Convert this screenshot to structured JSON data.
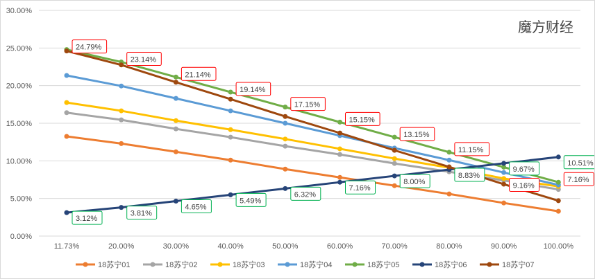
{
  "chart_data": {
    "type": "line",
    "title": "",
    "xlabel": "",
    "ylabel": "",
    "categories": [
      "11.73%",
      "20.00%",
      "30.00%",
      "40.00%",
      "50.00%",
      "60.00%",
      "70.00%",
      "80.00%",
      "90.00%",
      "100.00%"
    ],
    "ylim": [
      0,
      30
    ],
    "yticks": [
      "0.00%",
      "5.00%",
      "10.00%",
      "15.00%",
      "20.00%",
      "25.00%",
      "30.00%"
    ],
    "grid": true,
    "legend_position": "bottom",
    "series": [
      {
        "name": "18苏宁01",
        "color": "#ED7D31",
        "values": [
          13.25,
          12.3,
          11.2,
          10.1,
          8.9,
          7.8,
          6.7,
          5.6,
          4.4,
          3.3
        ]
      },
      {
        "name": "18苏宁02",
        "color": "#A5A5A5",
        "values": [
          16.4,
          15.45,
          14.25,
          13.15,
          11.95,
          10.85,
          9.65,
          8.55,
          7.4,
          6.2
        ]
      },
      {
        "name": "18苏宁03",
        "color": "#FFC000",
        "values": [
          17.75,
          16.65,
          15.35,
          14.15,
          12.9,
          11.6,
          10.3,
          9.1,
          7.65,
          6.6
        ]
      },
      {
        "name": "18苏宁04",
        "color": "#5B9BD5",
        "values": [
          21.35,
          19.95,
          18.3,
          16.65,
          15.0,
          13.35,
          11.7,
          10.1,
          8.45,
          6.8
        ]
      },
      {
        "name": "18苏宁05",
        "color": "#70AD47",
        "values": [
          24.79,
          23.14,
          21.14,
          19.14,
          17.15,
          15.15,
          13.15,
          11.15,
          9.16,
          7.16
        ],
        "data_labels": [
          "24.79%",
          "23.14%",
          "21.14%",
          "19.14%",
          "17.15%",
          "15.15%",
          "13.15%",
          "11.15%",
          "9.16%",
          "7.16%"
        ],
        "label_border": "#FF0000"
      },
      {
        "name": "18苏宁06",
        "color": "#264478",
        "values": [
          3.12,
          3.81,
          4.65,
          5.49,
          6.32,
          7.16,
          8.0,
          8.83,
          9.67,
          10.51
        ],
        "data_labels": [
          "3.12%",
          "3.81%",
          "4.65%",
          "5.49%",
          "6.32%",
          "7.16%",
          "8.00%",
          "8.83%",
          "9.67%",
          "10.51%"
        ],
        "label_border": "#00B050"
      },
      {
        "name": "18苏宁07",
        "color": "#9E480E",
        "values": [
          24.6,
          22.75,
          20.45,
          18.2,
          15.9,
          13.7,
          11.4,
          9.2,
          6.9,
          4.7
        ]
      }
    ]
  },
  "watermark": "魔方财经"
}
